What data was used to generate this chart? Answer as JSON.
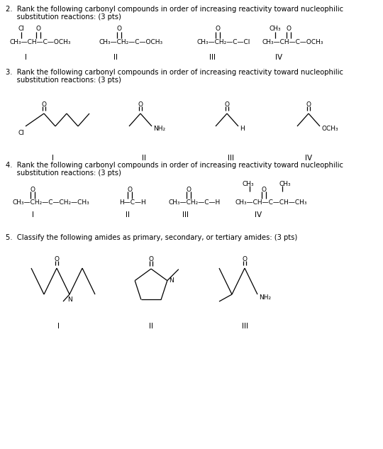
{
  "bg": "#ffffff",
  "fc": 7.2,
  "fh": 7.2,
  "fl": 7.5,
  "fci": 6.5,
  "q2_line1": "2.  Rank the following carbonyl compounds in order of increasing reactivity toward nucleophilic",
  "q2_line2": "     substitution reactions: (3 pts)",
  "q3_line1": "3.  Rank the following carbonyl compounds in order of increasing reactivity toward nucleophilic",
  "q3_line2": "     substitution reactions: (3 pts)",
  "q4_line1": "4.  Rank the following carbonyl compounds in order of increasing reactivity toward nucleophilic",
  "q4_line2": "     substitution reactions: (3 pts)",
  "q5_line1": "5.  Classify the following amides as primary, secondary, or tertiary amides: (3 pts)"
}
